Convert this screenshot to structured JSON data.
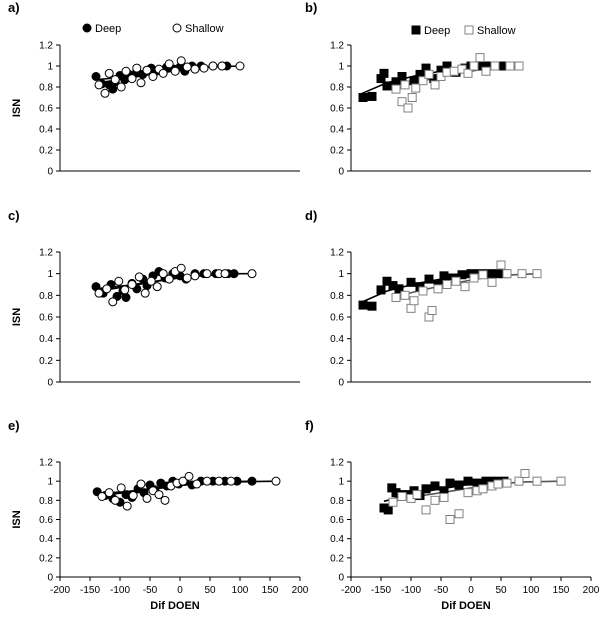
{
  "chart_data": [
    {
      "panel_label": "a)",
      "type": "scatter",
      "ylabel": "ISN",
      "xlabel": "",
      "xlim": [
        -200,
        200
      ],
      "ylim": [
        0,
        1.2
      ],
      "yticks": [
        "0",
        "0.2",
        "0.4",
        "0.6",
        "0.8",
        "1",
        "1.2"
      ],
      "xticks": [],
      "legend": "top",
      "series": [
        {
          "name": "Deep",
          "marker": "circle",
          "fill": "#000000",
          "stroke": "#000000",
          "x": [
            -140,
            -130,
            -118,
            -112,
            -108,
            -100,
            -92,
            -85,
            -72,
            -62,
            -55,
            -48,
            -40,
            -30,
            -22,
            -10,
            0,
            8,
            20,
            35,
            55,
            70,
            78
          ],
          "y": [
            0.9,
            0.83,
            0.82,
            0.78,
            0.85,
            0.91,
            0.87,
            0.92,
            0.95,
            0.92,
            0.96,
            0.98,
            0.95,
            0.96,
            0.99,
            0.97,
            0.99,
            0.95,
            1.0,
            1.0,
            1.0,
            1.0,
            1.0
          ],
          "fit": [
            [
              -140,
              0.87
            ],
            [
              -100,
              0.89
            ],
            [
              -50,
              0.92
            ],
            [
              0,
              0.96
            ],
            [
              40,
              0.99
            ],
            [
              80,
              1.0
            ]
          ]
        },
        {
          "name": "Shallow",
          "marker": "circle",
          "fill": "#ffffff",
          "stroke": "#000000",
          "x": [
            -135,
            -125,
            -118,
            -108,
            -98,
            -90,
            -80,
            -72,
            -65,
            -55,
            -45,
            -35,
            -28,
            -18,
            -8,
            2,
            12,
            25,
            40,
            55,
            70,
            100
          ],
          "y": [
            0.82,
            0.74,
            0.93,
            0.87,
            0.8,
            0.95,
            0.88,
            0.98,
            0.84,
            0.96,
            0.9,
            0.97,
            0.93,
            1.02,
            0.95,
            1.05,
            0.99,
            0.97,
            0.98,
            1.0,
            1.0,
            1.0
          ],
          "fit": [
            [
              -135,
              0.84
            ],
            [
              -90,
              0.88
            ],
            [
              -40,
              0.93
            ],
            [
              0,
              0.97
            ],
            [
              50,
              0.99
            ],
            [
              100,
              1.0
            ]
          ]
        }
      ]
    },
    {
      "panel_label": "b)",
      "type": "scatter",
      "ylabel": "",
      "xlabel": "",
      "xlim": [
        -200,
        200
      ],
      "ylim": [
        0,
        1.2
      ],
      "yticks": [
        "0",
        "0.2",
        "0.4",
        "0.6",
        "0.8",
        "1",
        "1.2"
      ],
      "xticks": [],
      "legend": "top",
      "series": [
        {
          "name": "Deep",
          "marker": "square",
          "fill": "#000000",
          "stroke": "#000000",
          "x": [
            -180,
            -165,
            -150,
            -145,
            -140,
            -125,
            -115,
            -95,
            -85,
            -75,
            -62,
            -50,
            -40,
            -25,
            -10,
            0,
            15,
            30,
            45,
            55
          ],
          "y": [
            0.7,
            0.71,
            0.88,
            0.93,
            0.81,
            0.85,
            0.9,
            0.86,
            0.92,
            0.98,
            0.88,
            0.96,
            1.0,
            0.94,
            0.98,
            1.0,
            1.0,
            1.0,
            1.0,
            1.0
          ],
          "fit": [
            [
              -185,
              0.73
            ],
            [
              -140,
              0.84
            ],
            [
              -90,
              0.91
            ],
            [
              -40,
              0.96
            ],
            [
              10,
              0.99
            ],
            [
              55,
              1.0
            ]
          ]
        },
        {
          "name": "Shallow",
          "marker": "square",
          "fill": "#ffffff",
          "stroke": "#808080",
          "x": [
            -125,
            -115,
            -110,
            -105,
            -98,
            -92,
            -80,
            -70,
            -60,
            -50,
            -40,
            -28,
            -15,
            -5,
            5,
            15,
            25,
            40,
            65,
            80
          ],
          "y": [
            0.78,
            0.66,
            0.82,
            0.6,
            0.7,
            0.79,
            0.86,
            0.92,
            0.82,
            0.9,
            0.94,
            0.95,
            0.97,
            0.93,
            1.0,
            1.08,
            0.95,
            1.0,
            1.0,
            1.0
          ],
          "fit": [
            [
              -125,
              0.8
            ],
            [
              -80,
              0.86
            ],
            [
              -30,
              0.92
            ],
            [
              20,
              0.97
            ],
            [
              80,
              1.0
            ]
          ]
        }
      ]
    },
    {
      "panel_label": "c)",
      "type": "scatter",
      "ylabel": "ISN",
      "xlabel": "",
      "xlim": [
        -200,
        200
      ],
      "ylim": [
        0,
        1.2
      ],
      "yticks": [
        "0",
        "0.2",
        "0.4",
        "0.6",
        "0.8",
        "1",
        "1.2"
      ],
      "xticks": [],
      "series": [
        {
          "name": "Deep",
          "marker": "circle",
          "fill": "#000000",
          "stroke": "#000000",
          "x": [
            -140,
            -128,
            -115,
            -105,
            -95,
            -90,
            -80,
            -72,
            -62,
            -55,
            -45,
            -35,
            -25,
            -12,
            0,
            10,
            25,
            40,
            60,
            80,
            90
          ],
          "y": [
            0.88,
            0.82,
            0.9,
            0.79,
            0.84,
            0.78,
            0.91,
            0.86,
            0.95,
            0.89,
            0.98,
            1.02,
            0.96,
            1.0,
            0.98,
            0.95,
            1.0,
            1.0,
            1.0,
            1.0,
            1.0
          ],
          "fit": [
            [
              -140,
              0.86
            ],
            [
              -90,
              0.89
            ],
            [
              -40,
              0.93
            ],
            [
              10,
              0.97
            ],
            [
              60,
              0.99
            ],
            [
              90,
              1.0
            ]
          ]
        },
        {
          "name": "Shallow",
          "marker": "circle",
          "fill": "#ffffff",
          "stroke": "#000000",
          "x": [
            -135,
            -122,
            -112,
            -102,
            -92,
            -80,
            -68,
            -58,
            -48,
            -38,
            -28,
            -18,
            -8,
            2,
            12,
            25,
            45,
            65,
            75,
            120
          ],
          "y": [
            0.82,
            0.86,
            0.74,
            0.93,
            0.85,
            0.9,
            0.97,
            0.82,
            0.93,
            0.88,
            1.0,
            0.95,
            1.02,
            1.05,
            0.96,
            0.98,
            1.0,
            1.0,
            1.0,
            1.0
          ],
          "fit": [
            [
              -135,
              0.84
            ],
            [
              -80,
              0.89
            ],
            [
              -30,
              0.94
            ],
            [
              20,
              0.98
            ],
            [
              70,
              1.0
            ],
            [
              120,
              1.0
            ]
          ]
        }
      ]
    },
    {
      "panel_label": "d)",
      "type": "scatter",
      "ylabel": "",
      "xlabel": "",
      "xlim": [
        -200,
        200
      ],
      "ylim": [
        0,
        1.2
      ],
      "yticks": [
        "0",
        "0.2",
        "0.4",
        "0.6",
        "0.8",
        "1",
        "1.2"
      ],
      "xticks": [],
      "series": [
        {
          "name": "Deep",
          "marker": "square",
          "fill": "#000000",
          "stroke": "#000000",
          "x": [
            -180,
            -165,
            -150,
            -140,
            -130,
            -120,
            -100,
            -85,
            -70,
            -55,
            -45,
            -30,
            -15,
            0,
            15,
            30,
            45,
            55
          ],
          "y": [
            0.71,
            0.7,
            0.85,
            0.93,
            0.89,
            0.86,
            0.92,
            0.88,
            0.95,
            0.9,
            0.98,
            0.96,
            0.99,
            1.0,
            1.0,
            1.0,
            1.0,
            1.0
          ],
          "fit": [
            [
              -185,
              0.73
            ],
            [
              -140,
              0.84
            ],
            [
              -90,
              0.91
            ],
            [
              -40,
              0.96
            ],
            [
              10,
              0.99
            ],
            [
              55,
              1.0
            ]
          ]
        },
        {
          "name": "Shallow",
          "marker": "square",
          "fill": "#ffffff",
          "stroke": "#808080",
          "x": [
            -125,
            -110,
            -100,
            -95,
            -80,
            -70,
            -65,
            -55,
            -40,
            -25,
            -10,
            5,
            20,
            35,
            50,
            60,
            85,
            110
          ],
          "y": [
            0.78,
            0.8,
            0.68,
            0.75,
            0.84,
            0.6,
            0.66,
            0.86,
            0.9,
            0.93,
            0.88,
            0.96,
            0.99,
            0.92,
            1.08,
            1.0,
            1.0,
            1.0
          ],
          "fit": [
            [
              -125,
              0.79
            ],
            [
              -80,
              0.85
            ],
            [
              -30,
              0.91
            ],
            [
              20,
              0.96
            ],
            [
              70,
              0.99
            ],
            [
              110,
              1.0
            ]
          ]
        }
      ]
    },
    {
      "panel_label": "e)",
      "type": "scatter",
      "ylabel": "ISN",
      "xlabel": "Dif  DOEN",
      "xlim": [
        -200,
        200
      ],
      "ylim": [
        0,
        1.2
      ],
      "yticks": [
        "0",
        "0.2",
        "0.4",
        "0.6",
        "0.8",
        "1",
        "1.2"
      ],
      "xticks": [
        "-200",
        "-150",
        "-100",
        "-50",
        "0",
        "50",
        "100",
        "150",
        "200"
      ],
      "series": [
        {
          "name": "Deep",
          "marker": "circle",
          "fill": "#000000",
          "stroke": "#000000",
          "x": [
            -138,
            -125,
            -112,
            -100,
            -90,
            -80,
            -70,
            -60,
            -50,
            -42,
            -32,
            -22,
            -12,
            -2,
            8,
            20,
            35,
            55,
            75,
            95,
            120
          ],
          "y": [
            0.89,
            0.85,
            0.82,
            0.78,
            0.86,
            0.83,
            0.92,
            0.88,
            0.96,
            0.91,
            0.98,
            0.95,
            1.0,
            0.97,
            1.0,
            0.96,
            1.0,
            1.0,
            1.0,
            1.0,
            1.0
          ],
          "fit": [
            [
              -138,
              0.87
            ],
            [
              -90,
              0.89
            ],
            [
              -40,
              0.93
            ],
            [
              10,
              0.96
            ],
            [
              60,
              0.99
            ],
            [
              120,
              1.0
            ]
          ]
        },
        {
          "name": "Shallow",
          "marker": "circle",
          "fill": "#ffffff",
          "stroke": "#000000",
          "x": [
            -130,
            -118,
            -108,
            -98,
            -88,
            -78,
            -65,
            -55,
            -45,
            -35,
            -25,
            -15,
            -5,
            5,
            15,
            28,
            45,
            65,
            85,
            160
          ],
          "y": [
            0.84,
            0.88,
            0.8,
            0.93,
            0.74,
            0.85,
            0.97,
            0.82,
            0.9,
            0.86,
            0.8,
            0.95,
            0.98,
            1.0,
            1.05,
            0.97,
            1.0,
            1.0,
            1.0,
            1.0
          ],
          "fit": [
            [
              -130,
              0.85
            ],
            [
              -80,
              0.89
            ],
            [
              -30,
              0.93
            ],
            [
              20,
              0.97
            ],
            [
              80,
              0.99
            ],
            [
              160,
              1.0
            ]
          ]
        }
      ]
    },
    {
      "panel_label": "f)",
      "type": "scatter",
      "ylabel": "",
      "xlabel": "Dif  DOEN",
      "xlim": [
        -200,
        200
      ],
      "ylim": [
        0,
        1.2
      ],
      "yticks": [
        "0",
        "0.2",
        "0.4",
        "0.6",
        "0.8",
        "1",
        "1.2"
      ],
      "xticks": [
        "-200",
        "-150",
        "-100",
        "-50",
        "0",
        "50",
        "100",
        "150",
        "200"
      ],
      "series": [
        {
          "name": "Deep",
          "marker": "square",
          "fill": "#000000",
          "stroke": "#000000",
          "x": [
            -145,
            -138,
            -132,
            -125,
            -110,
            -95,
            -85,
            -75,
            -60,
            -45,
            -35,
            -20,
            -5,
            10,
            25,
            40,
            55
          ],
          "y": [
            0.72,
            0.7,
            0.93,
            0.88,
            0.86,
            0.9,
            0.85,
            0.92,
            0.95,
            0.9,
            0.98,
            0.96,
            1.0,
            0.98,
            1.0,
            1.0,
            1.0
          ],
          "fit": [
            [
              -145,
              0.79
            ],
            [
              -110,
              0.85
            ],
            [
              -60,
              0.91
            ],
            [
              -10,
              0.96
            ],
            [
              30,
              0.99
            ],
            [
              55,
              1.0
            ]
          ]
        },
        {
          "name": "Shallow",
          "marker": "square",
          "fill": "#ffffff",
          "stroke": "#808080",
          "x": [
            -130,
            -115,
            -100,
            -90,
            -75,
            -60,
            -45,
            -35,
            -20,
            -5,
            10,
            20,
            35,
            45,
            60,
            80,
            90,
            110,
            150
          ],
          "y": [
            0.78,
            0.84,
            0.82,
            0.86,
            0.7,
            0.8,
            0.83,
            0.6,
            0.66,
            0.88,
            0.9,
            0.92,
            0.95,
            0.97,
            0.98,
            1.0,
            1.08,
            1.0,
            1.0
          ],
          "fit": [
            [
              -130,
              0.79
            ],
            [
              -80,
              0.85
            ],
            [
              -30,
              0.9
            ],
            [
              20,
              0.95
            ],
            [
              80,
              0.99
            ],
            [
              150,
              1.0
            ]
          ]
        }
      ]
    }
  ]
}
